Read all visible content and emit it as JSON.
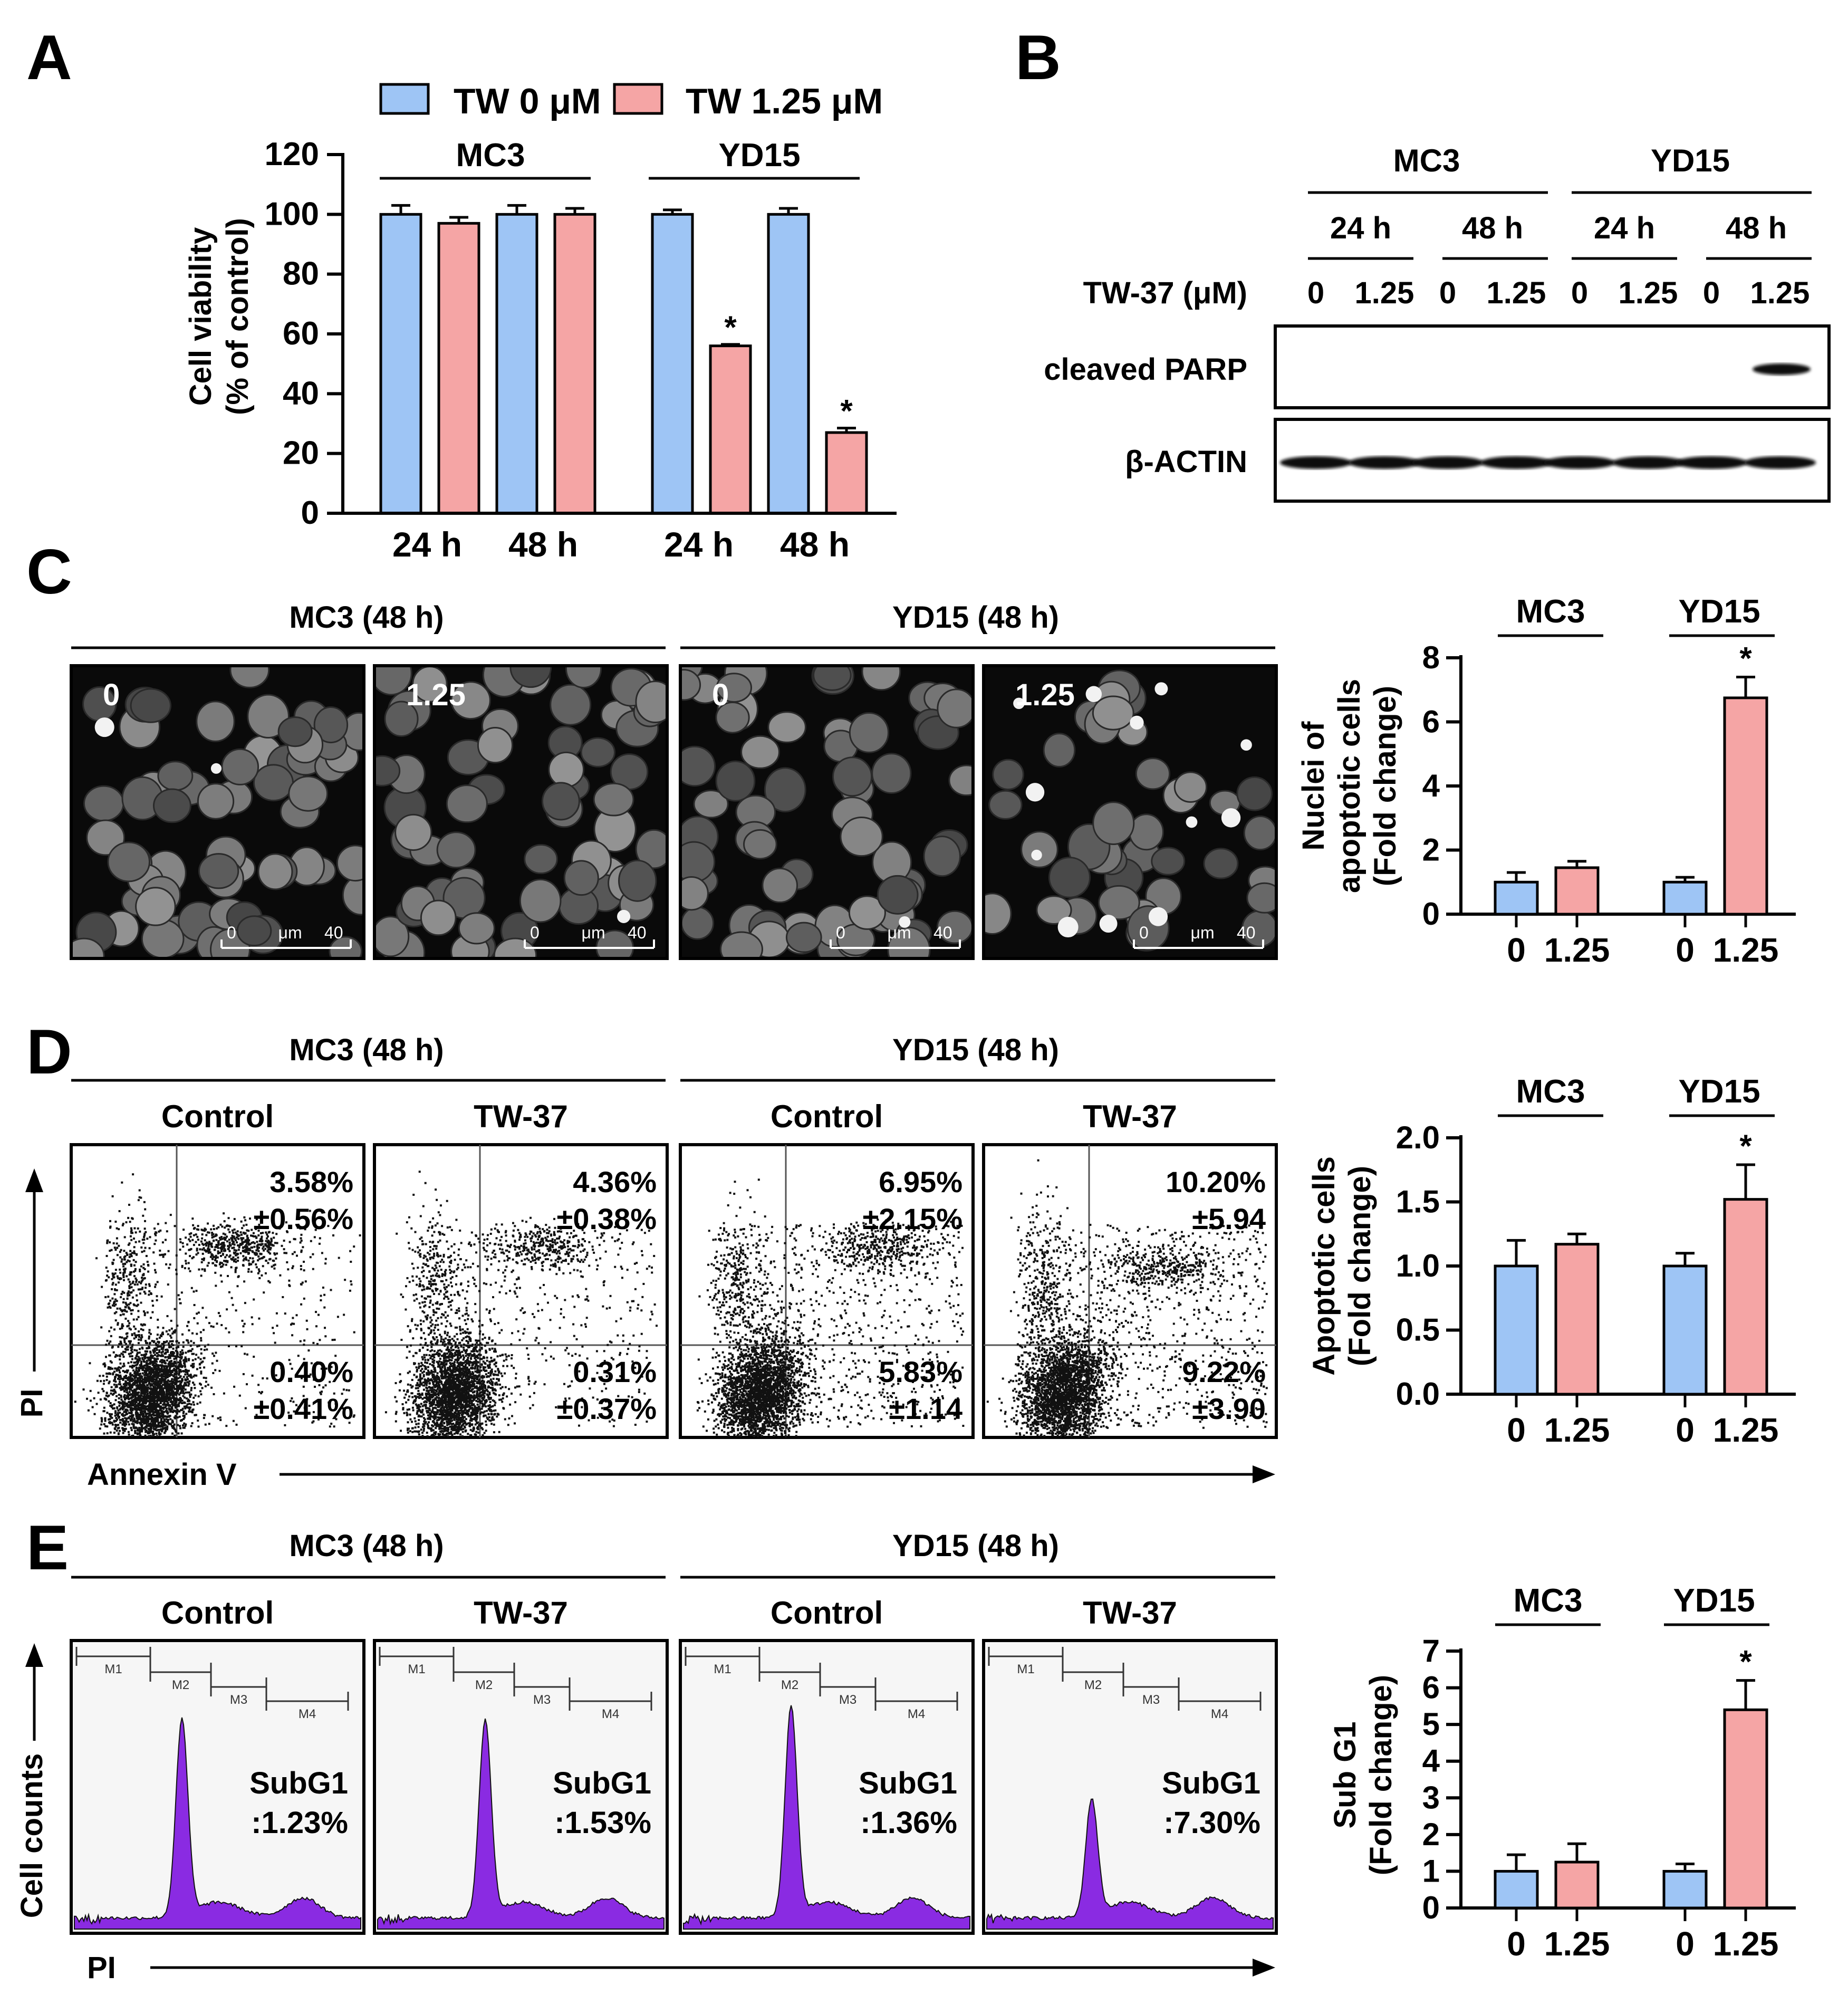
{
  "colors": {
    "tw0": "#9ec5f5",
    "tw125": "#f5a5a5",
    "flow_peak": "#8a2be2"
  },
  "panelA": {
    "letter": "A",
    "legend": [
      "TW 0 μM",
      "TW 1.25 μM"
    ],
    "groups": [
      "MC3",
      "YD15"
    ],
    "ylabel_lines": [
      "Cell viability",
      "(% of control)"
    ],
    "xticks": [
      "24 h",
      "48 h",
      "24 h",
      "48 h"
    ],
    "yticks": [
      "0",
      "20",
      "40",
      "60",
      "80",
      "100",
      "120"
    ],
    "star": "*"
  },
  "panelB": {
    "letter": "B",
    "groups": [
      "MC3",
      "YD15"
    ],
    "times": [
      "24 h",
      "48 h",
      "24 h",
      "48 h"
    ],
    "treatment_label": "TW-37 (μM)",
    "doses": [
      "0",
      "1.25",
      "0",
      "1.25",
      "0",
      "1.25",
      "0",
      "1.25"
    ],
    "rows": [
      "cleaved PARP",
      "β-ACTIN"
    ]
  },
  "panelC": {
    "letter": "C",
    "groups": [
      "MC3 (48 h)",
      "YD15 (48 h)"
    ],
    "image_labels": [
      "0",
      "1.25",
      "0",
      "1.25"
    ],
    "scale": [
      "0",
      "μm",
      "40"
    ],
    "chart_groups": [
      "MC3",
      "YD15"
    ],
    "ylabel_lines": [
      "Nuclei of",
      "apoptotic cells",
      "(Fold change)"
    ],
    "yticks": [
      "0",
      "2",
      "4",
      "6",
      "8"
    ],
    "xticks": [
      "0",
      "1.25",
      "0",
      "1.25"
    ],
    "star": "*"
  },
  "panelD": {
    "letter": "D",
    "groups": [
      "MC3 (48 h)",
      "YD15 (48 h)"
    ],
    "columns": [
      "Control",
      "TW-37",
      "Control",
      "TW-37"
    ],
    "quadrants": [
      {
        "ur": [
          "3.58%",
          "±0.56%"
        ],
        "lr": [
          "0.40%",
          "±0.41%"
        ]
      },
      {
        "ur": [
          "4.36%",
          "±0.38%"
        ],
        "lr": [
          "0.31%",
          "±0.37%"
        ]
      },
      {
        "ur": [
          "6.95%",
          "±2.15%"
        ],
        "lr": [
          "5.83%",
          "±1.14"
        ]
      },
      {
        "ur": [
          "10.20%",
          "±5.94"
        ],
        "lr": [
          "9.22%",
          "±3.90"
        ]
      }
    ],
    "yaxis": "PI",
    "xaxis": "Annexin V",
    "chart_groups": [
      "MC3",
      "YD15"
    ],
    "ylabel_lines": [
      "Apoptotic cells",
      "(Fold change)"
    ],
    "yticks": [
      "0.0",
      "0.5",
      "1.0",
      "1.5",
      "2.0"
    ],
    "xticks": [
      "0",
      "1.25",
      "0",
      "1.25"
    ],
    "star": "*"
  },
  "panelE": {
    "letter": "E",
    "groups": [
      "MC3 (48 h)",
      "YD15 (48 h)"
    ],
    "columns": [
      "Control",
      "TW-37",
      "Control",
      "TW-37"
    ],
    "gates": [
      "M1",
      "M2",
      "M3",
      "M4"
    ],
    "subg1_label": "SubG1",
    "subg1": [
      ":1.23%",
      ":1.53%",
      ":1.36%",
      ":7.30%"
    ],
    "yaxis": "Cell counts",
    "xaxis": "PI",
    "chart_groups": [
      "MC3",
      "YD15"
    ],
    "ylabel_lines": [
      "Sub G1",
      "(Fold change)"
    ],
    "yticks": [
      "0",
      "1",
      "2",
      "3",
      "4",
      "5",
      "6",
      "7"
    ],
    "xticks": [
      "0",
      "1.25",
      "0",
      "1.25"
    ],
    "star": "*"
  },
  "chart_data": [
    {
      "type": "bar",
      "title": "",
      "categories": [
        "MC3 24 h",
        "MC3 48 h",
        "YD15 24 h",
        "YD15 48 h"
      ],
      "series": [
        {
          "name": "TW 0 μM",
          "values": [
            100,
            100,
            100,
            100
          ],
          "err": [
            3,
            3,
            1.5,
            2
          ]
        },
        {
          "name": "TW 1.25 μM",
          "values": [
            97,
            100,
            56,
            27
          ],
          "err": [
            2,
            2,
            0.5,
            1.5
          ]
        }
      ],
      "ylabel": "Cell viability (% of control)",
      "ylim": [
        0,
        120
      ],
      "significant": [
        false,
        false,
        true,
        true
      ]
    },
    {
      "type": "bar",
      "categories": [
        "0",
        "1.25",
        "0",
        "1.25"
      ],
      "groups": [
        "MC3",
        "YD15"
      ],
      "values": [
        1.0,
        1.45,
        1.0,
        6.75
      ],
      "err": [
        0.3,
        0.2,
        0.15,
        0.65
      ],
      "ylabel": "Nuclei of apoptotic cells (Fold change)",
      "ylim": [
        0,
        8
      ]
    },
    {
      "type": "bar",
      "categories": [
        "0",
        "1.25",
        "0",
        "1.25"
      ],
      "groups": [
        "MC3",
        "YD15"
      ],
      "values": [
        1.0,
        1.17,
        1.0,
        1.52
      ],
      "err": [
        0.2,
        0.08,
        0.1,
        0.27
      ],
      "ylabel": "Apoptotic cells (Fold change)",
      "ylim": [
        0,
        2.0
      ]
    },
    {
      "type": "bar",
      "categories": [
        "0",
        "1.25",
        "0",
        "1.25"
      ],
      "groups": [
        "MC3",
        "YD15"
      ],
      "values": [
        1.0,
        1.25,
        1.0,
        5.4
      ],
      "err": [
        0.45,
        0.5,
        0.2,
        0.8
      ],
      "ylabel": "Sub G1 (Fold change)",
      "ylim": [
        0,
        7
      ]
    }
  ]
}
